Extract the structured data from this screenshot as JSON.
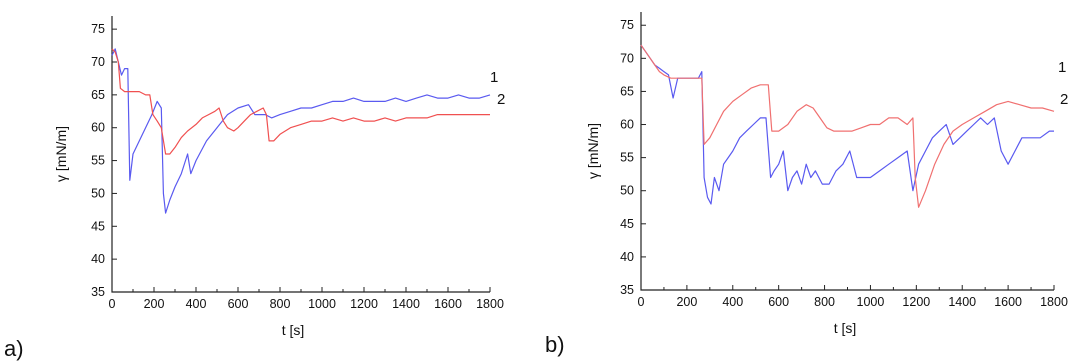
{
  "chart_data": [
    {
      "panel": "a)",
      "type": "line",
      "xlabel": "t [s]",
      "ylabel": "γ [mN/m]",
      "xlim": [
        0,
        1800
      ],
      "ylim": [
        35,
        77
      ],
      "xticks": [
        0,
        200,
        400,
        600,
        800,
        1000,
        1200,
        1400,
        1600,
        1800
      ],
      "yticks": [
        35,
        40,
        45,
        50,
        55,
        60,
        65,
        70,
        75
      ],
      "grid": false,
      "series": [
        {
          "name": "1",
          "color": "#5a5af0",
          "points": [
            [
              0,
              71
            ],
            [
              15,
              72
            ],
            [
              30,
              70
            ],
            [
              45,
              68
            ],
            [
              60,
              69
            ],
            [
              75,
              69
            ],
            [
              85,
              52
            ],
            [
              100,
              56
            ],
            [
              130,
              58
            ],
            [
              160,
              60
            ],
            [
              190,
              62
            ],
            [
              215,
              64
            ],
            [
              235,
              63
            ],
            [
              245,
              50
            ],
            [
              255,
              47
            ],
            [
              275,
              49
            ],
            [
              300,
              51
            ],
            [
              330,
              53
            ],
            [
              360,
              56
            ],
            [
              375,
              53
            ],
            [
              400,
              55
            ],
            [
              450,
              58
            ],
            [
              500,
              60
            ],
            [
              550,
              62
            ],
            [
              600,
              63
            ],
            [
              650,
              63.5
            ],
            [
              680,
              62
            ],
            [
              700,
              62
            ],
            [
              730,
              62
            ],
            [
              760,
              61.5
            ],
            [
              800,
              62
            ],
            [
              850,
              62.5
            ],
            [
              900,
              63
            ],
            [
              950,
              63
            ],
            [
              1000,
              63.5
            ],
            [
              1050,
              64
            ],
            [
              1100,
              64
            ],
            [
              1150,
              64.5
            ],
            [
              1200,
              64
            ],
            [
              1250,
              64
            ],
            [
              1300,
              64
            ],
            [
              1350,
              64.5
            ],
            [
              1400,
              64
            ],
            [
              1450,
              64.5
            ],
            [
              1500,
              65
            ],
            [
              1550,
              64.5
            ],
            [
              1600,
              64.5
            ],
            [
              1650,
              65
            ],
            [
              1700,
              64.5
            ],
            [
              1750,
              64.5
            ],
            [
              1800,
              65
            ]
          ]
        },
        {
          "name": "2",
          "color": "#f05050",
          "points": [
            [
              0,
              72
            ],
            [
              15,
              71.5
            ],
            [
              30,
              70
            ],
            [
              40,
              66
            ],
            [
              60,
              65.5
            ],
            [
              80,
              65.5
            ],
            [
              100,
              65.5
            ],
            [
              130,
              65.5
            ],
            [
              160,
              65
            ],
            [
              180,
              65
            ],
            [
              195,
              62
            ],
            [
              215,
              61
            ],
            [
              235,
              60
            ],
            [
              255,
              56
            ],
            [
              275,
              56
            ],
            [
              300,
              57
            ],
            [
              330,
              58.5
            ],
            [
              360,
              59.5
            ],
            [
              400,
              60.5
            ],
            [
              430,
              61.5
            ],
            [
              460,
              62
            ],
            [
              490,
              62.5
            ],
            [
              510,
              63
            ],
            [
              530,
              61
            ],
            [
              550,
              60
            ],
            [
              580,
              59.5
            ],
            [
              600,
              60
            ],
            [
              630,
              61
            ],
            [
              660,
              62
            ],
            [
              690,
              62.5
            ],
            [
              720,
              63
            ],
            [
              735,
              62
            ],
            [
              748,
              58
            ],
            [
              770,
              58
            ],
            [
              800,
              59
            ],
            [
              850,
              60
            ],
            [
              900,
              60.5
            ],
            [
              950,
              61
            ],
            [
              1000,
              61
            ],
            [
              1050,
              61.5
            ],
            [
              1100,
              61
            ],
            [
              1150,
              61.5
            ],
            [
              1200,
              61
            ],
            [
              1250,
              61
            ],
            [
              1300,
              61.5
            ],
            [
              1350,
              61
            ],
            [
              1400,
              61.5
            ],
            [
              1450,
              61.5
            ],
            [
              1500,
              61.5
            ],
            [
              1550,
              62
            ],
            [
              1600,
              62
            ],
            [
              1650,
              62
            ],
            [
              1700,
              62
            ],
            [
              1750,
              62
            ],
            [
              1800,
              62
            ]
          ]
        }
      ],
      "annotations": [
        "1",
        "2"
      ]
    },
    {
      "panel": "b)",
      "type": "line",
      "xlabel": "t [s]",
      "ylabel": "γ [mN/m]",
      "xlim": [
        0,
        1800
      ],
      "ylim": [
        35,
        77
      ],
      "xticks": [
        0,
        200,
        400,
        600,
        800,
        1000,
        1200,
        1400,
        1600,
        1800
      ],
      "yticks": [
        35,
        40,
        45,
        50,
        55,
        60,
        65,
        70,
        75
      ],
      "grid": false,
      "series": [
        {
          "name": "1",
          "color": "#5a5af0",
          "points": [
            [
              0,
              72
            ],
            [
              20,
              71
            ],
            [
              40,
              70
            ],
            [
              60,
              69
            ],
            [
              80,
              68.5
            ],
            [
              100,
              68
            ],
            [
              120,
              67.5
            ],
            [
              140,
              64
            ],
            [
              160,
              67
            ],
            [
              190,
              67
            ],
            [
              220,
              67
            ],
            [
              250,
              67
            ],
            [
              265,
              68
            ],
            [
              275,
              52
            ],
            [
              290,
              49
            ],
            [
              305,
              48
            ],
            [
              320,
              52
            ],
            [
              340,
              50
            ],
            [
              360,
              54
            ],
            [
              380,
              55
            ],
            [
              400,
              56
            ],
            [
              430,
              58
            ],
            [
              460,
              59
            ],
            [
              490,
              60
            ],
            [
              520,
              61
            ],
            [
              545,
              61
            ],
            [
              565,
              52
            ],
            [
              580,
              53
            ],
            [
              600,
              54
            ],
            [
              620,
              56
            ],
            [
              640,
              50
            ],
            [
              660,
              52
            ],
            [
              680,
              53
            ],
            [
              700,
              51
            ],
            [
              720,
              54
            ],
            [
              740,
              52
            ],
            [
              760,
              53
            ],
            [
              790,
              51
            ],
            [
              820,
              51
            ],
            [
              850,
              53
            ],
            [
              880,
              54
            ],
            [
              910,
              56
            ],
            [
              940,
              52
            ],
            [
              970,
              52
            ],
            [
              1000,
              52
            ],
            [
              1040,
              53
            ],
            [
              1080,
              54
            ],
            [
              1120,
              55
            ],
            [
              1160,
              56
            ],
            [
              1185,
              50
            ],
            [
              1210,
              54
            ],
            [
              1240,
              56
            ],
            [
              1270,
              58
            ],
            [
              1300,
              59
            ],
            [
              1330,
              60
            ],
            [
              1360,
              57
            ],
            [
              1390,
              58
            ],
            [
              1420,
              59
            ],
            [
              1450,
              60
            ],
            [
              1480,
              61
            ],
            [
              1510,
              60
            ],
            [
              1540,
              61
            ],
            [
              1570,
              56
            ],
            [
              1600,
              54
            ],
            [
              1630,
              56
            ],
            [
              1660,
              58
            ],
            [
              1700,
              58
            ],
            [
              1740,
              58
            ],
            [
              1780,
              59
            ],
            [
              1800,
              59
            ]
          ]
        },
        {
          "name": "2",
          "color": "#f07070",
          "points": [
            [
              0,
              72
            ],
            [
              20,
              71
            ],
            [
              40,
              70
            ],
            [
              60,
              69
            ],
            [
              80,
              68
            ],
            [
              100,
              67.5
            ],
            [
              130,
              67
            ],
            [
              160,
              67
            ],
            [
              190,
              67
            ],
            [
              220,
              67
            ],
            [
              250,
              67
            ],
            [
              265,
              67
            ],
            [
              275,
              57
            ],
            [
              300,
              58
            ],
            [
              330,
              60
            ],
            [
              360,
              62
            ],
            [
              400,
              63.5
            ],
            [
              440,
              64.5
            ],
            [
              480,
              65.5
            ],
            [
              520,
              66
            ],
            [
              555,
              66
            ],
            [
              570,
              59
            ],
            [
              600,
              59
            ],
            [
              640,
              60
            ],
            [
              680,
              62
            ],
            [
              720,
              63
            ],
            [
              750,
              62.5
            ],
            [
              780,
              61
            ],
            [
              810,
              59.5
            ],
            [
              840,
              59
            ],
            [
              880,
              59
            ],
            [
              920,
              59
            ],
            [
              960,
              59.5
            ],
            [
              1000,
              60
            ],
            [
              1040,
              60
            ],
            [
              1080,
              61
            ],
            [
              1120,
              61
            ],
            [
              1160,
              60
            ],
            [
              1185,
              61
            ],
            [
              1195,
              52
            ],
            [
              1210,
              47.5
            ],
            [
              1240,
              50
            ],
            [
              1280,
              54
            ],
            [
              1320,
              57
            ],
            [
              1360,
              59
            ],
            [
              1400,
              60
            ],
            [
              1450,
              61
            ],
            [
              1500,
              62
            ],
            [
              1550,
              63
            ],
            [
              1600,
              63.5
            ],
            [
              1650,
              63
            ],
            [
              1700,
              62.5
            ],
            [
              1750,
              62.5
            ],
            [
              1800,
              62
            ]
          ]
        }
      ],
      "annotations": [
        "1",
        "2"
      ]
    }
  ]
}
